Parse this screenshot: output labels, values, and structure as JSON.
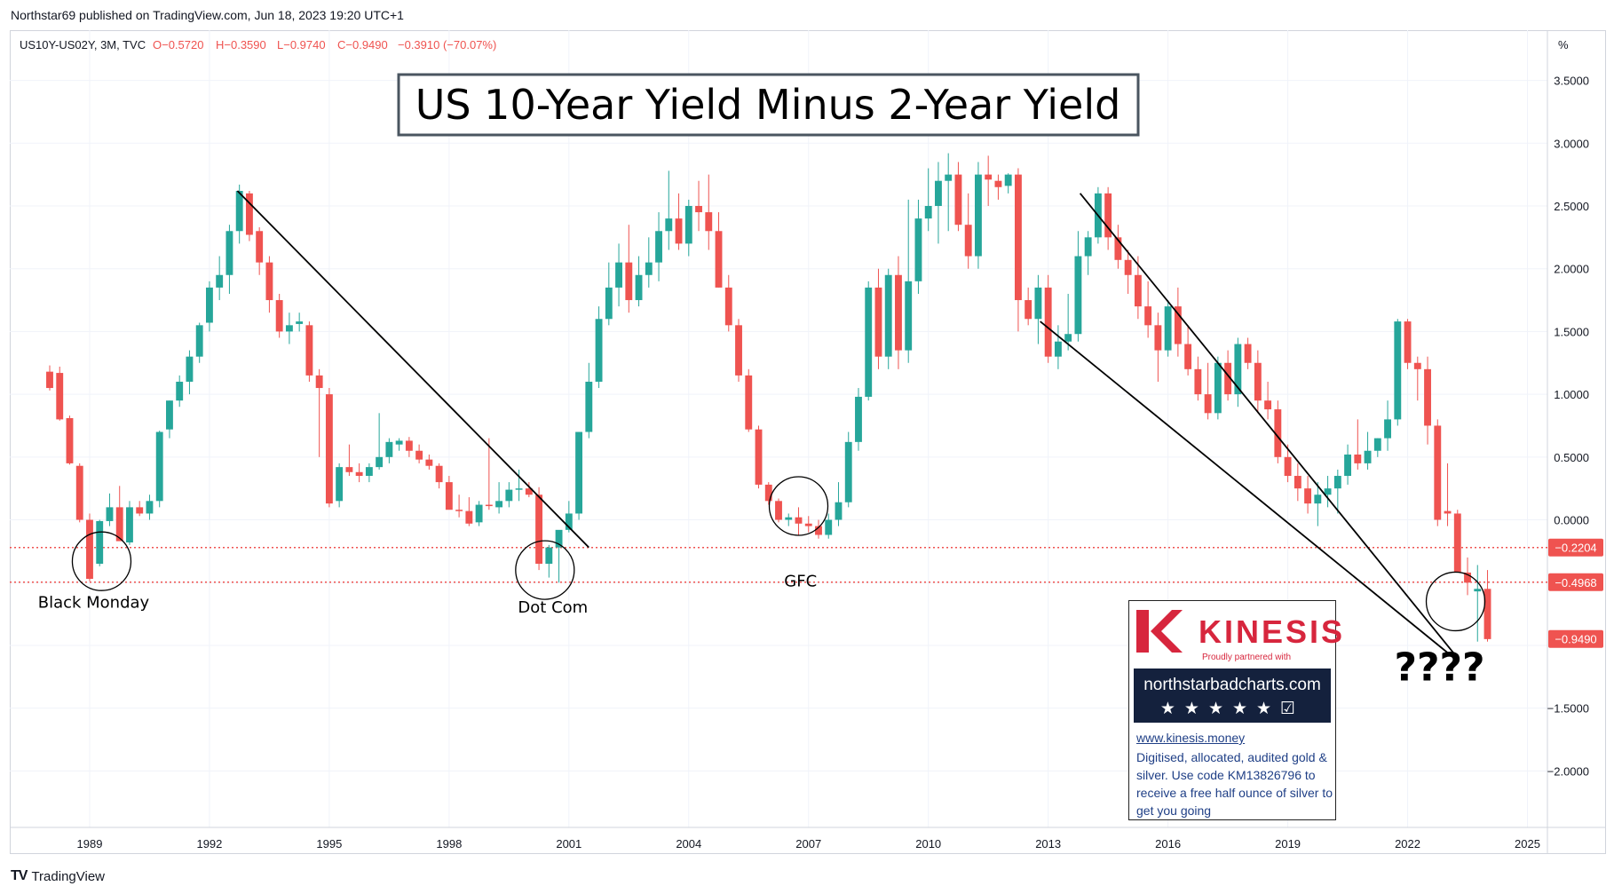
{
  "header": {
    "published": "Northstar69 published on TradingView.com, Jun 18, 2023 19:20 UTC+1"
  },
  "ohlc_line": {
    "symbol": "US10Y-US02Y, 3M, TVC",
    "o": "O−0.5720",
    "h": "H−0.3590",
    "l": "L−0.9740",
    "c": "C−0.9490",
    "chg": "−0.3910 (−70.07%)"
  },
  "footer": {
    "brand": "TradingView"
  },
  "colors": {
    "up": "#26a69a",
    "down": "#ef5350",
    "tag": "#ef5350",
    "line": "#000000",
    "kinesis_red": "#d7263d",
    "kinesis_navy": "#14213d"
  },
  "kinesis": {
    "brand": "KINESIS",
    "tagline": "Proudly partnered with",
    "site": "northstarbadcharts.com",
    "rating": "★★★★★☑",
    "url": "www.kinesis.money",
    "desc": "Digitised, allocated, audited gold & silver. Use code KM13826796 to receive a free half ounce of silver to get you going"
  },
  "chart_data": {
    "type": "candlestick",
    "title": "US 10-Year Yield Minus 2-Year Yield",
    "yunit": "%",
    "ylim": [
      -2.45,
      3.9
    ],
    "xlim": [
      1987.0,
      2025.5
    ],
    "y_ticks": [
      "3.5000",
      "3.0000",
      "2.5000",
      "2.0000",
      "1.5000",
      "1.0000",
      "0.5000",
      "0.0000",
      "−1.5000",
      "−2.0000"
    ],
    "y_tick_values": [
      3.5,
      3.0,
      2.5,
      2.0,
      1.5,
      1.0,
      0.5,
      0.0,
      -1.5,
      -2.0
    ],
    "x_ticks": [
      "1989",
      "1992",
      "1995",
      "1998",
      "2001",
      "2004",
      "2007",
      "2010",
      "2013",
      "2016",
      "2019",
      "2022",
      "2025"
    ],
    "x_tick_values": [
      1989,
      1992,
      1995,
      1998,
      2001,
      2004,
      2007,
      2010,
      2013,
      2016,
      2019,
      2022,
      2025
    ],
    "price_tags": [
      {
        "label": "−0.2204",
        "value": -0.2204,
        "line": true
      },
      {
        "label": "−0.4968",
        "value": -0.4968,
        "line": true
      },
      {
        "label": "−0.9490",
        "value": -0.949,
        "line": false
      }
    ],
    "annotations": [
      {
        "text": "Black Monday",
        "x": 1989.1,
        "y": -0.7
      },
      {
        "text": "Dot Com",
        "x": 2000.6,
        "y": -0.74
      },
      {
        "text": "GFC",
        "x": 2006.8,
        "y": -0.53
      },
      {
        "text": "????",
        "x": 2022.8,
        "y": -1.28
      }
    ],
    "circles": [
      {
        "x": 1989.3,
        "y": -0.33
      },
      {
        "x": 2000.4,
        "y": -0.4
      },
      {
        "x": 2006.75,
        "y": 0.11
      },
      {
        "x": 2023.2,
        "y": -0.65
      }
    ],
    "trendlines": [
      {
        "x1": 1992.7,
        "y1": 2.62,
        "x2": 2001.5,
        "y2": -0.22
      },
      {
        "x1": 2013.8,
        "y1": 2.6,
        "x2": 2023.2,
        "y2": -1.08
      },
      {
        "x1": 2012.8,
        "y1": 1.58,
        "x2": 2023.2,
        "y2": -1.11
      }
    ],
    "candles": [
      [
        1988.0,
        1.18,
        1.23,
        1.03,
        1.05
      ],
      [
        1988.25,
        1.17,
        1.22,
        0.79,
        0.8
      ],
      [
        1988.5,
        0.81,
        0.83,
        0.44,
        0.45
      ],
      [
        1988.75,
        0.43,
        0.45,
        -0.02,
        0.0
      ],
      [
        1989.0,
        0.0,
        0.05,
        -0.49,
        -0.47
      ],
      [
        1989.25,
        -0.35,
        0.0,
        -0.37,
        -0.01
      ],
      [
        1989.5,
        -0.01,
        0.21,
        -0.05,
        0.1
      ],
      [
        1989.75,
        0.1,
        0.27,
        -0.13,
        -0.17
      ],
      [
        1990.0,
        -0.18,
        0.15,
        -0.2,
        0.1
      ],
      [
        1990.25,
        0.1,
        0.15,
        0.03,
        0.05
      ],
      [
        1990.5,
        0.05,
        0.2,
        0.0,
        0.15
      ],
      [
        1990.75,
        0.15,
        0.71,
        0.1,
        0.7
      ],
      [
        1991.0,
        0.72,
        0.95,
        0.65,
        0.95
      ],
      [
        1991.25,
        0.95,
        1.15,
        0.9,
        1.1
      ],
      [
        1991.5,
        1.1,
        1.35,
        1.0,
        1.3
      ],
      [
        1991.75,
        1.3,
        1.57,
        1.25,
        1.55
      ],
      [
        1992.0,
        1.57,
        1.9,
        1.5,
        1.85
      ],
      [
        1992.25,
        1.85,
        2.1,
        1.75,
        1.95
      ],
      [
        1992.5,
        1.95,
        2.35,
        1.8,
        2.3
      ],
      [
        1992.75,
        2.3,
        2.67,
        2.2,
        2.62
      ],
      [
        1993.0,
        2.6,
        2.62,
        2.22,
        2.27
      ],
      [
        1993.25,
        2.3,
        2.33,
        1.95,
        2.05
      ],
      [
        1993.5,
        2.05,
        2.1,
        1.65,
        1.75
      ],
      [
        1993.75,
        1.75,
        1.8,
        1.45,
        1.5
      ],
      [
        1994.0,
        1.5,
        1.65,
        1.4,
        1.55
      ],
      [
        1994.25,
        1.56,
        1.65,
        1.5,
        1.58
      ],
      [
        1994.5,
        1.55,
        1.58,
        1.1,
        1.15
      ],
      [
        1994.75,
        1.15,
        1.2,
        0.5,
        1.05
      ],
      [
        1995.0,
        1.0,
        1.05,
        0.1,
        0.13
      ],
      [
        1995.25,
        0.15,
        0.45,
        0.1,
        0.42
      ],
      [
        1995.5,
        0.42,
        0.6,
        0.35,
        0.38
      ],
      [
        1995.75,
        0.38,
        0.45,
        0.3,
        0.35
      ],
      [
        1996.0,
        0.35,
        0.45,
        0.3,
        0.42
      ],
      [
        1996.25,
        0.42,
        0.85,
        0.4,
        0.5
      ],
      [
        1996.5,
        0.5,
        0.65,
        0.45,
        0.62
      ],
      [
        1996.75,
        0.6,
        0.65,
        0.55,
        0.63
      ],
      [
        1997.0,
        0.63,
        0.66,
        0.5,
        0.55
      ],
      [
        1997.25,
        0.55,
        0.6,
        0.45,
        0.48
      ],
      [
        1997.5,
        0.48,
        0.52,
        0.4,
        0.43
      ],
      [
        1997.75,
        0.43,
        0.45,
        0.25,
        0.3
      ],
      [
        1998.0,
        0.3,
        0.35,
        0.1,
        0.08
      ],
      [
        1998.25,
        0.08,
        0.2,
        0.02,
        0.07
      ],
      [
        1998.5,
        0.07,
        0.18,
        -0.05,
        -0.03
      ],
      [
        1998.75,
        -0.02,
        0.15,
        -0.05,
        0.12
      ],
      [
        1999.0,
        0.12,
        0.65,
        0.08,
        0.11
      ],
      [
        1999.25,
        0.1,
        0.3,
        0.05,
        0.15
      ],
      [
        1999.5,
        0.15,
        0.3,
        0.1,
        0.24
      ],
      [
        1999.75,
        0.24,
        0.4,
        0.15,
        0.25
      ],
      [
        2000.0,
        0.25,
        0.3,
        0.18,
        0.2
      ],
      [
        2000.25,
        0.2,
        0.26,
        -0.4,
        -0.35
      ],
      [
        2000.5,
        -0.35,
        -0.2,
        -0.46,
        -0.22
      ],
      [
        2000.75,
        -0.22,
        -0.1,
        -0.5,
        -0.08
      ],
      [
        2001.0,
        -0.08,
        0.15,
        -0.1,
        0.05
      ],
      [
        2001.25,
        0.05,
        0.7,
        0.0,
        0.7
      ],
      [
        2001.5,
        0.7,
        1.25,
        0.65,
        1.1
      ],
      [
        2001.75,
        1.1,
        1.7,
        1.05,
        1.6
      ],
      [
        2002.0,
        1.6,
        2.05,
        1.55,
        1.85
      ],
      [
        2002.25,
        1.85,
        2.2,
        1.7,
        2.05
      ],
      [
        2002.5,
        2.05,
        2.35,
        1.65,
        1.75
      ],
      [
        2002.75,
        1.75,
        2.1,
        1.7,
        1.95
      ],
      [
        2003.0,
        1.95,
        2.25,
        1.85,
        2.05
      ],
      [
        2003.25,
        2.05,
        2.45,
        1.9,
        2.3
      ],
      [
        2003.5,
        2.3,
        2.78,
        2.15,
        2.4
      ],
      [
        2003.75,
        2.4,
        2.6,
        2.15,
        2.2
      ],
      [
        2004.0,
        2.2,
        2.55,
        2.1,
        2.5
      ],
      [
        2004.25,
        2.5,
        2.7,
        2.3,
        2.45
      ],
      [
        2004.5,
        2.45,
        2.75,
        2.15,
        2.3
      ],
      [
        2004.75,
        2.3,
        2.45,
        1.85,
        1.85
      ],
      [
        2005.0,
        1.85,
        1.95,
        1.5,
        1.55
      ],
      [
        2005.25,
        1.55,
        1.6,
        1.1,
        1.15
      ],
      [
        2005.5,
        1.15,
        1.2,
        0.7,
        0.72
      ],
      [
        2005.75,
        0.72,
        0.75,
        0.25,
        0.28
      ],
      [
        2006.0,
        0.28,
        0.3,
        0.12,
        0.15
      ],
      [
        2006.25,
        0.15,
        0.17,
        -0.02,
        0.0
      ],
      [
        2006.5,
        0.0,
        0.05,
        -0.05,
        0.02
      ],
      [
        2006.75,
        0.02,
        0.1,
        -0.12,
        -0.03
      ],
      [
        2007.0,
        -0.03,
        0.03,
        -0.1,
        -0.05
      ],
      [
        2007.25,
        -0.05,
        0.0,
        -0.15,
        -0.12
      ],
      [
        2007.5,
        -0.12,
        0.05,
        -0.15,
        0.0
      ],
      [
        2007.75,
        0.0,
        0.3,
        -0.05,
        0.14
      ],
      [
        2008.0,
        0.14,
        0.7,
        0.1,
        0.62
      ],
      [
        2008.25,
        0.62,
        1.05,
        0.55,
        0.98
      ],
      [
        2008.5,
        0.98,
        1.9,
        0.95,
        1.85
      ],
      [
        2008.75,
        1.85,
        2.0,
        1.2,
        1.3
      ],
      [
        2009.0,
        1.3,
        2.0,
        1.2,
        1.95
      ],
      [
        2009.25,
        1.95,
        2.1,
        1.2,
        1.35
      ],
      [
        2009.5,
        1.35,
        2.55,
        1.25,
        1.9
      ],
      [
        2009.75,
        1.9,
        2.55,
        1.8,
        2.4
      ],
      [
        2010.0,
        2.4,
        2.8,
        2.3,
        2.5
      ],
      [
        2010.25,
        2.5,
        2.85,
        2.2,
        2.7
      ],
      [
        2010.5,
        2.7,
        2.92,
        2.3,
        2.75
      ],
      [
        2010.75,
        2.75,
        2.85,
        2.3,
        2.35
      ],
      [
        2011.0,
        2.35,
        2.6,
        2.0,
        2.1
      ],
      [
        2011.25,
        2.1,
        2.85,
        2.0,
        2.75
      ],
      [
        2011.5,
        2.75,
        2.9,
        2.5,
        2.71
      ],
      [
        2011.75,
        2.7,
        2.75,
        2.55,
        2.65
      ],
      [
        2012.0,
        2.66,
        2.76,
        2.6,
        2.75
      ],
      [
        2012.25,
        2.75,
        2.8,
        1.5,
        1.75
      ],
      [
        2012.5,
        1.75,
        1.85,
        1.55,
        1.6
      ],
      [
        2012.75,
        1.6,
        1.95,
        1.4,
        1.85
      ],
      [
        2013.0,
        1.85,
        1.95,
        1.25,
        1.3
      ],
      [
        2013.25,
        1.3,
        1.55,
        1.2,
        1.42
      ],
      [
        2013.5,
        1.42,
        1.8,
        1.35,
        1.48
      ],
      [
        2013.75,
        1.48,
        2.3,
        1.42,
        2.1
      ],
      [
        2014.0,
        2.1,
        2.3,
        1.95,
        2.25
      ],
      [
        2014.25,
        2.25,
        2.65,
        2.2,
        2.6
      ],
      [
        2014.5,
        2.6,
        2.65,
        2.15,
        2.25
      ],
      [
        2014.75,
        2.25,
        2.35,
        2.0,
        2.07
      ],
      [
        2015.0,
        2.07,
        2.15,
        1.8,
        1.95
      ],
      [
        2015.25,
        1.95,
        2.1,
        1.6,
        1.7
      ],
      [
        2015.5,
        1.7,
        1.9,
        1.45,
        1.55
      ],
      [
        2015.75,
        1.55,
        1.65,
        1.1,
        1.35
      ],
      [
        2016.0,
        1.35,
        1.75,
        1.3,
        1.7
      ],
      [
        2016.25,
        1.7,
        1.85,
        1.3,
        1.4
      ],
      [
        2016.5,
        1.4,
        1.55,
        1.15,
        1.2
      ],
      [
        2016.75,
        1.2,
        1.3,
        0.95,
        1.0
      ],
      [
        2017.0,
        1.0,
        1.25,
        0.8,
        0.85
      ],
      [
        2017.25,
        0.85,
        1.3,
        0.8,
        1.25
      ],
      [
        2017.5,
        1.25,
        1.35,
        0.95,
        1.0
      ],
      [
        2017.75,
        1.0,
        1.45,
        0.9,
        1.4
      ],
      [
        2018.0,
        1.4,
        1.45,
        1.2,
        1.25
      ],
      [
        2018.25,
        1.25,
        1.35,
        0.85,
        0.95
      ],
      [
        2018.5,
        0.95,
        1.1,
        0.8,
        0.88
      ],
      [
        2018.75,
        0.88,
        0.95,
        0.45,
        0.5
      ],
      [
        2019.0,
        0.5,
        0.6,
        0.3,
        0.35
      ],
      [
        2019.25,
        0.35,
        0.45,
        0.15,
        0.25
      ],
      [
        2019.5,
        0.25,
        0.35,
        0.05,
        0.13
      ],
      [
        2019.75,
        0.13,
        0.3,
        -0.05,
        0.2
      ],
      [
        2020.0,
        0.2,
        0.35,
        0.1,
        0.25
      ],
      [
        2020.25,
        0.25,
        0.4,
        0.05,
        0.35
      ],
      [
        2020.5,
        0.35,
        0.6,
        0.28,
        0.52
      ],
      [
        2020.75,
        0.52,
        0.8,
        0.4,
        0.45
      ],
      [
        2021.0,
        0.45,
        0.7,
        0.4,
        0.55
      ],
      [
        2021.25,
        0.55,
        0.65,
        0.5,
        0.65
      ],
      [
        2021.5,
        0.65,
        0.95,
        0.55,
        0.8
      ],
      [
        2021.75,
        0.8,
        1.6,
        0.75,
        1.58
      ],
      [
        2022.0,
        1.58,
        1.6,
        1.2,
        1.25
      ],
      [
        2022.25,
        1.25,
        1.3,
        0.95,
        1.2
      ],
      [
        2022.5,
        1.2,
        1.3,
        0.6,
        0.75
      ],
      [
        2022.75,
        0.75,
        0.8,
        -0.05,
        0.0
      ],
      [
        2023.0,
        0.07,
        0.45,
        -0.05,
        0.05
      ],
      [
        2023.25,
        0.05,
        0.08,
        -0.4,
        -0.42
      ],
      [
        2023.5,
        -0.42,
        -0.3,
        -0.6,
        -0.5
      ],
      [
        2023.75,
        -0.57,
        -0.36,
        -0.97,
        -0.55
      ],
      [
        2024.0,
        -0.55,
        -0.4,
        -0.97,
        -0.95
      ]
    ]
  }
}
